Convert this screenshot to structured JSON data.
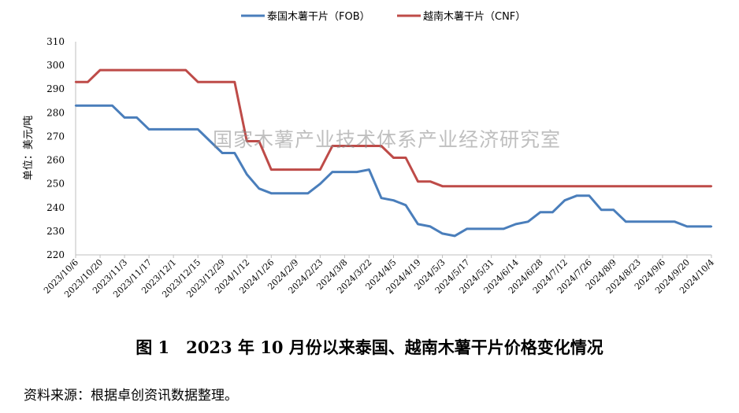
{
  "chart_data": {
    "type": "line",
    "ylabel": "单位：美元/吨",
    "ylim": [
      220,
      310
    ],
    "yticks": [
      220,
      230,
      240,
      250,
      260,
      270,
      280,
      290,
      300,
      310
    ],
    "x_tick_labels": [
      "2023/10/6",
      "2023/10/20",
      "2023/11/3",
      "2023/11/17",
      "2023/12/1",
      "2023/12/15",
      "2023/12/29",
      "2024/1/12",
      "2024/1/26",
      "2024/2/9",
      "2024/2/23",
      "2024/3/8",
      "2024/3/22",
      "2024/4/5",
      "2024/4/19",
      "2024/5/3",
      "2024/5/17",
      "2024/5/31",
      "2024/6/14",
      "2024/6/28",
      "2024/7/12",
      "2024/7/26",
      "2024/8/9",
      "2024/8/23",
      "2024/9/6",
      "2024/9/20",
      "2024/10/4"
    ],
    "x_dates": [
      "2023/10/6",
      "2023/10/13",
      "2023/10/20",
      "2023/10/27",
      "2023/11/3",
      "2023/11/10",
      "2023/11/17",
      "2023/11/24",
      "2023/12/1",
      "2023/12/8",
      "2023/12/15",
      "2023/12/22",
      "2023/12/29",
      "2024/1/5",
      "2024/1/12",
      "2024/1/19",
      "2024/1/26",
      "2024/2/2",
      "2024/2/9",
      "2024/2/16",
      "2024/2/23",
      "2024/3/1",
      "2024/3/8",
      "2024/3/15",
      "2024/3/22",
      "2024/3/29",
      "2024/4/5",
      "2024/4/12",
      "2024/4/19",
      "2024/4/26",
      "2024/5/3",
      "2024/5/10",
      "2024/5/17",
      "2024/5/24",
      "2024/5/31",
      "2024/6/7",
      "2024/6/14",
      "2024/6/21",
      "2024/6/28",
      "2024/7/5",
      "2024/7/12",
      "2024/7/19",
      "2024/7/26",
      "2024/8/2",
      "2024/8/9",
      "2024/8/16",
      "2024/8/23",
      "2024/8/30",
      "2024/9/6",
      "2024/9/13",
      "2024/9/20",
      "2024/9/27",
      "2024/10/4"
    ],
    "series": [
      {
        "name": "泰国木薯干片（FOB）",
        "color": "#4a7ebb",
        "values": [
          283,
          283,
          283,
          283,
          278,
          278,
          273,
          273,
          273,
          273,
          273,
          268,
          263,
          263,
          254,
          248,
          246,
          246,
          246,
          246,
          250,
          255,
          255,
          255,
          256,
          244,
          243,
          241,
          233,
          232,
          229,
          228,
          231,
          231,
          231,
          231,
          233,
          234,
          238,
          238,
          243,
          245,
          245,
          239,
          239,
          234,
          234,
          234,
          234,
          234,
          232,
          232,
          232
        ]
      },
      {
        "name": "越南木薯干片（CNF）",
        "color": "#be4b48",
        "values": [
          293,
          293,
          298,
          298,
          298,
          298,
          298,
          298,
          298,
          298,
          293,
          293,
          293,
          293,
          268,
          268,
          256,
          256,
          256,
          256,
          256,
          266,
          266,
          266,
          266,
          266,
          261,
          261,
          251,
          251,
          249,
          249,
          249,
          249,
          249,
          249,
          249,
          249,
          249,
          249,
          249,
          249,
          249,
          249,
          249,
          249,
          249,
          249,
          249,
          249,
          249,
          249,
          249
        ]
      }
    ],
    "grid": false,
    "legend": "top-center"
  },
  "watermark": "国家木薯产业技术体系产业经济研究室",
  "caption": "图 1　2023 年 10 月份以来泰国、越南木薯干片价格变化情况",
  "source": "资料来源：根据卓创资讯数据整理。"
}
